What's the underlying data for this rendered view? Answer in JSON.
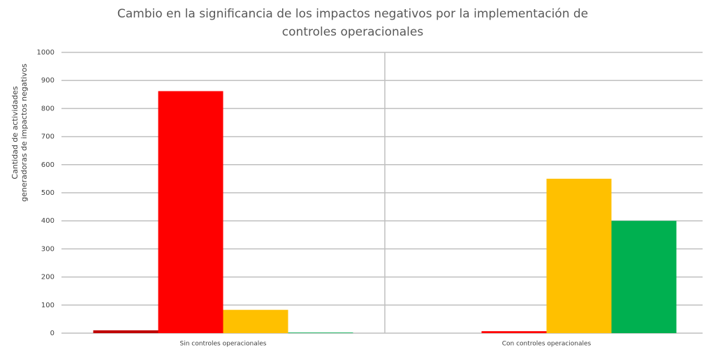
{
  "chart_data": {
    "type": "bar",
    "title": [
      "Cambio en la significancia de los impactos negativos por la implementación de",
      "controles operacionales"
    ],
    "ylabel": [
      "Cantidad de actividades",
      "generadoras de impactos negativos"
    ],
    "categories": [
      "Sin controles operacionales",
      "Con controles operacionales"
    ],
    "series": [
      {
        "color": "#c00000",
        "values": [
          10,
          0
        ]
      },
      {
        "color": "#ff0000",
        "values": [
          862,
          7
        ]
      },
      {
        "color": "#ffc000",
        "values": [
          83,
          550
        ]
      },
      {
        "color": "#00b050",
        "values": [
          2,
          400
        ]
      }
    ],
    "ylim": [
      0,
      1000
    ],
    "yticks": [
      0,
      100,
      200,
      300,
      400,
      500,
      600,
      700,
      800,
      900,
      1000
    ],
    "grid": true
  }
}
